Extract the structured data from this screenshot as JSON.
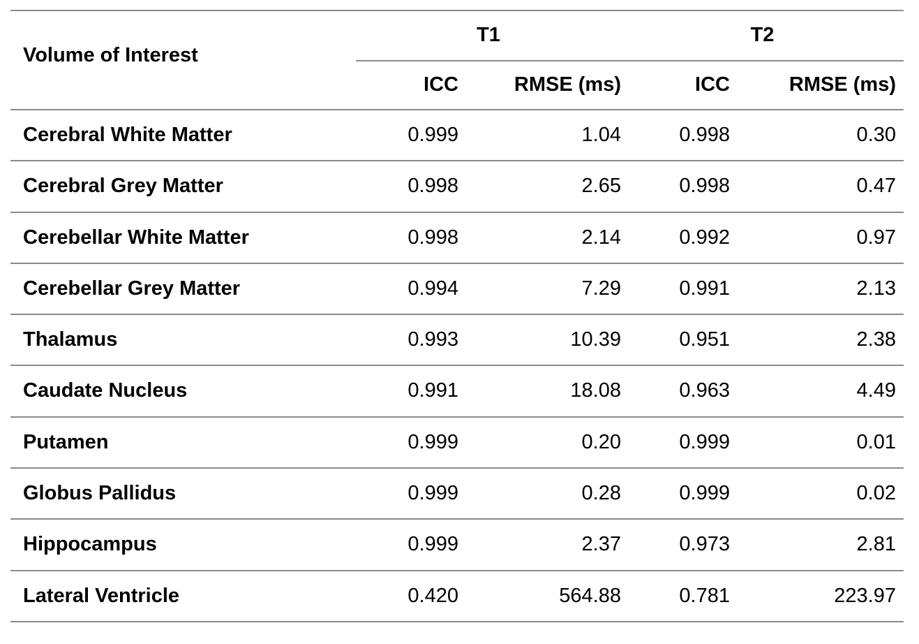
{
  "table": {
    "col1_header": "Volume of Interest",
    "groups": [
      {
        "label": "T1"
      },
      {
        "label": "T2"
      }
    ],
    "sub_headers": [
      "ICC",
      "RMSE (ms)",
      "ICC",
      "RMSE (ms)"
    ],
    "rows": [
      {
        "label": "Cerebral White Matter",
        "values": [
          "0.999",
          "1.04",
          "0.998",
          "0.30"
        ]
      },
      {
        "label": "Cerebral Grey Matter",
        "values": [
          "0.998",
          "2.65",
          "0.998",
          "0.47"
        ]
      },
      {
        "label": "Cerebellar White Matter",
        "values": [
          "0.998",
          "2.14",
          "0.992",
          "0.97"
        ]
      },
      {
        "label": "Cerebellar Grey Matter",
        "values": [
          "0.994",
          "7.29",
          "0.991",
          "2.13"
        ]
      },
      {
        "label": "Thalamus",
        "values": [
          "0.993",
          "10.39",
          "0.951",
          "2.38"
        ]
      },
      {
        "label": "Caudate Nucleus",
        "values": [
          "0.991",
          "18.08",
          "0.963",
          "4.49"
        ]
      },
      {
        "label": "Putamen",
        "values": [
          "0.999",
          "0.20",
          "0.999",
          "0.01"
        ]
      },
      {
        "label": "Globus Pallidus",
        "values": [
          "0.999",
          "0.28",
          "0.999",
          "0.02"
        ]
      },
      {
        "label": "Hippocampus",
        "values": [
          "0.999",
          "2.37",
          "0.973",
          "2.81"
        ]
      },
      {
        "label": "Lateral Ventricle",
        "values": [
          "0.420",
          "564.88",
          "0.781",
          "223.97"
        ]
      }
    ]
  },
  "colors": {
    "rule": "#8a8a8a",
    "text": "#000000",
    "background": "#ffffff"
  }
}
